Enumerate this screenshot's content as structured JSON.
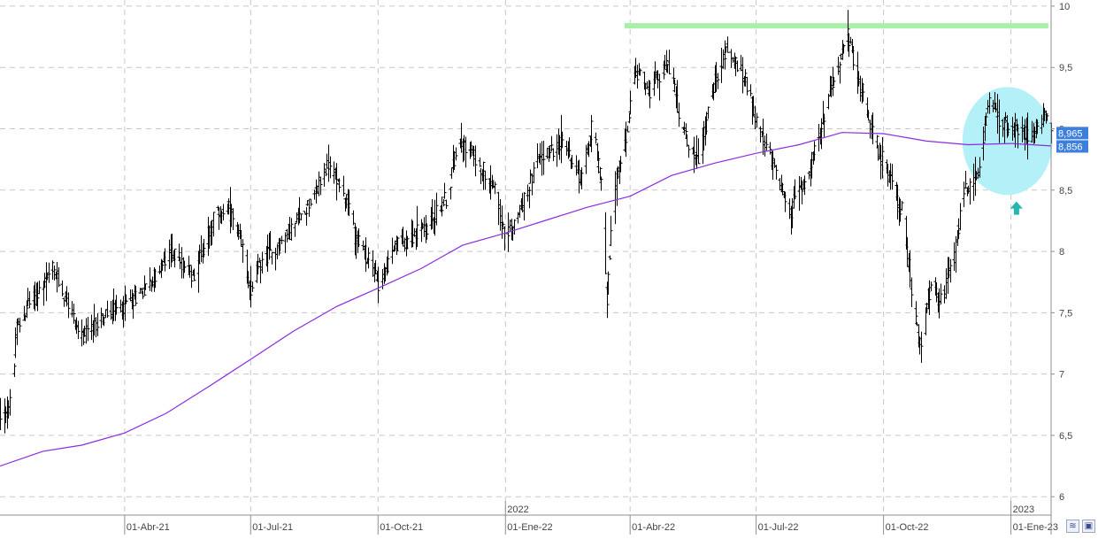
{
  "chart_data": {
    "type": "ohlc",
    "ylim": [
      5.85,
      10.05
    ],
    "y_ticks": [
      6,
      6.5,
      7,
      7.5,
      8,
      8.5,
      9,
      9.5,
      10
    ],
    "y_tick_labels": [
      "6",
      "6,5",
      "7",
      "7,5",
      "8",
      "8,5",
      "9",
      "9,5",
      "10"
    ],
    "x_range": [
      "2021-01-01",
      "2023-01-30"
    ],
    "x_ticks": [
      {
        "date": "2021-04-01",
        "label": "01-Abr-21"
      },
      {
        "date": "2021-07-01",
        "label": "01-Jul-21"
      },
      {
        "date": "2021-10-01",
        "label": "01-Oct-21"
      },
      {
        "date": "2022-01-01",
        "label": "01-Ene-22"
      },
      {
        "date": "2022-04-01",
        "label": "01-Abr-22"
      },
      {
        "date": "2022-07-01",
        "label": "01-Jul-22"
      },
      {
        "date": "2022-10-01",
        "label": "01-Oct-22"
      },
      {
        "date": "2023-01-01",
        "label": "01-Ene-23"
      }
    ],
    "year_markers": [
      {
        "date": "2022-01-01",
        "label": "2022"
      },
      {
        "date": "2023-01-01",
        "label": "2023"
      }
    ],
    "price_path": [
      [
        "2021-01-01",
        6.66
      ],
      [
        "2021-01-08",
        6.75
      ],
      [
        "2021-01-13",
        7.35
      ],
      [
        "2021-01-20",
        7.55
      ],
      [
        "2021-02-01",
        7.72
      ],
      [
        "2021-02-08",
        7.85
      ],
      [
        "2021-02-20",
        7.55
      ],
      [
        "2021-03-01",
        7.28
      ],
      [
        "2021-03-15",
        7.45
      ],
      [
        "2021-03-31",
        7.55
      ],
      [
        "2021-04-20",
        7.75
      ],
      [
        "2021-05-05",
        8.0
      ],
      [
        "2021-05-20",
        7.8
      ],
      [
        "2021-06-05",
        8.3
      ],
      [
        "2021-06-15",
        8.35
      ],
      [
        "2021-06-25",
        8.0
      ],
      [
        "2021-07-01",
        7.7
      ],
      [
        "2021-07-08",
        7.9
      ],
      [
        "2021-07-25",
        8.1
      ],
      [
        "2021-08-15",
        8.45
      ],
      [
        "2021-08-25",
        8.7
      ],
      [
        "2021-09-05",
        8.55
      ],
      [
        "2021-09-15",
        8.1
      ],
      [
        "2021-09-25",
        7.9
      ],
      [
        "2021-10-01",
        7.75
      ],
      [
        "2021-10-15",
        8.05
      ],
      [
        "2021-11-05",
        8.2
      ],
      [
        "2021-11-20",
        8.45
      ],
      [
        "2021-11-28",
        8.95
      ],
      [
        "2021-12-10",
        8.75
      ],
      [
        "2021-12-25",
        8.55
      ],
      [
        "2021-12-31",
        8.1
      ],
      [
        "2022-01-10",
        8.3
      ],
      [
        "2022-01-25",
        8.75
      ],
      [
        "2022-02-10",
        8.9
      ],
      [
        "2022-02-25",
        8.6
      ],
      [
        "2022-03-05",
        9.05
      ],
      [
        "2022-03-12",
        8.45
      ],
      [
        "2022-03-15",
        7.6
      ],
      [
        "2022-03-19",
        8.4
      ],
      [
        "2022-03-31",
        9.05
      ],
      [
        "2022-04-04",
        9.5
      ],
      [
        "2022-04-15",
        9.3
      ],
      [
        "2022-04-28",
        9.55
      ],
      [
        "2022-05-10",
        8.95
      ],
      [
        "2022-05-20",
        8.75
      ],
      [
        "2022-06-01",
        9.4
      ],
      [
        "2022-06-10",
        9.65
      ],
      [
        "2022-06-25",
        9.35
      ],
      [
        "2022-07-05",
        8.9
      ],
      [
        "2022-07-15",
        8.7
      ],
      [
        "2022-07-25",
        8.3
      ],
      [
        "2022-08-05",
        8.6
      ],
      [
        "2022-08-15",
        8.9
      ],
      [
        "2022-08-25",
        9.4
      ],
      [
        "2022-09-05",
        9.75
      ],
      [
        "2022-09-15",
        9.3
      ],
      [
        "2022-09-25",
        8.9
      ],
      [
        "2022-10-05",
        8.6
      ],
      [
        "2022-10-15",
        8.3
      ],
      [
        "2022-10-22",
        7.6
      ],
      [
        "2022-10-27",
        7.2
      ],
      [
        "2022-11-05",
        7.8
      ],
      [
        "2022-11-10",
        7.55
      ],
      [
        "2022-11-20",
        7.9
      ],
      [
        "2022-11-28",
        8.5
      ],
      [
        "2022-12-08",
        8.6
      ],
      [
        "2022-12-15",
        9.2
      ],
      [
        "2022-12-25",
        9.05
      ],
      [
        "2023-01-05",
        9.0
      ],
      [
        "2023-01-15",
        8.95
      ],
      [
        "2023-01-25",
        9.1
      ],
      [
        "2023-01-30",
        8.97
      ]
    ],
    "moving_average": [
      [
        "2021-01-01",
        6.25
      ],
      [
        "2021-02-01",
        6.37
      ],
      [
        "2021-03-01",
        6.42
      ],
      [
        "2021-04-01",
        6.52
      ],
      [
        "2021-05-01",
        6.68
      ],
      [
        "2021-06-01",
        6.9
      ],
      [
        "2021-07-01",
        7.12
      ],
      [
        "2021-08-01",
        7.35
      ],
      [
        "2021-09-01",
        7.55
      ],
      [
        "2021-10-01",
        7.7
      ],
      [
        "2021-11-01",
        7.86
      ],
      [
        "2021-12-01",
        8.05
      ],
      [
        "2022-01-01",
        8.15
      ],
      [
        "2022-02-01",
        8.26
      ],
      [
        "2022-03-01",
        8.36
      ],
      [
        "2022-04-01",
        8.45
      ],
      [
        "2022-05-01",
        8.62
      ],
      [
        "2022-06-01",
        8.72
      ],
      [
        "2022-07-01",
        8.8
      ],
      [
        "2022-08-01",
        8.87
      ],
      [
        "2022-09-01",
        8.97
      ],
      [
        "2022-10-01",
        8.96
      ],
      [
        "2022-11-01",
        8.9
      ],
      [
        "2022-12-01",
        8.87
      ],
      [
        "2023-01-01",
        8.88
      ],
      [
        "2023-01-30",
        8.86
      ]
    ],
    "resistance_line": {
      "value": 9.84,
      "from": "2022-03-28",
      "to": "2023-01-28",
      "color": "#a8f0a8"
    },
    "highlight_ellipse": {
      "from": "2022-11-27",
      "to": "2023-01-31",
      "y_center": 8.9,
      "y_half_height": 0.44,
      "color": "#b3f0f8"
    },
    "arrow_marker": {
      "date": "2023-01-05",
      "value": 8.35,
      "direction": "up",
      "color": "#27b5b0"
    },
    "last_labels": [
      {
        "value": 8.965,
        "label": "8,965"
      },
      {
        "value": 8.856,
        "label": "8,856"
      }
    ],
    "colors": {
      "bars": "#000000",
      "moving_average": "#8a2be2",
      "grid": "#c8c8c8",
      "price_label_bg": "#3c7fdc",
      "axis": "#8f8f8f"
    }
  },
  "corner_buttons": [
    {
      "name": "scale-toggle-icon",
      "glyph": "≋"
    },
    {
      "name": "save-icon",
      "glyph": "▣"
    }
  ]
}
